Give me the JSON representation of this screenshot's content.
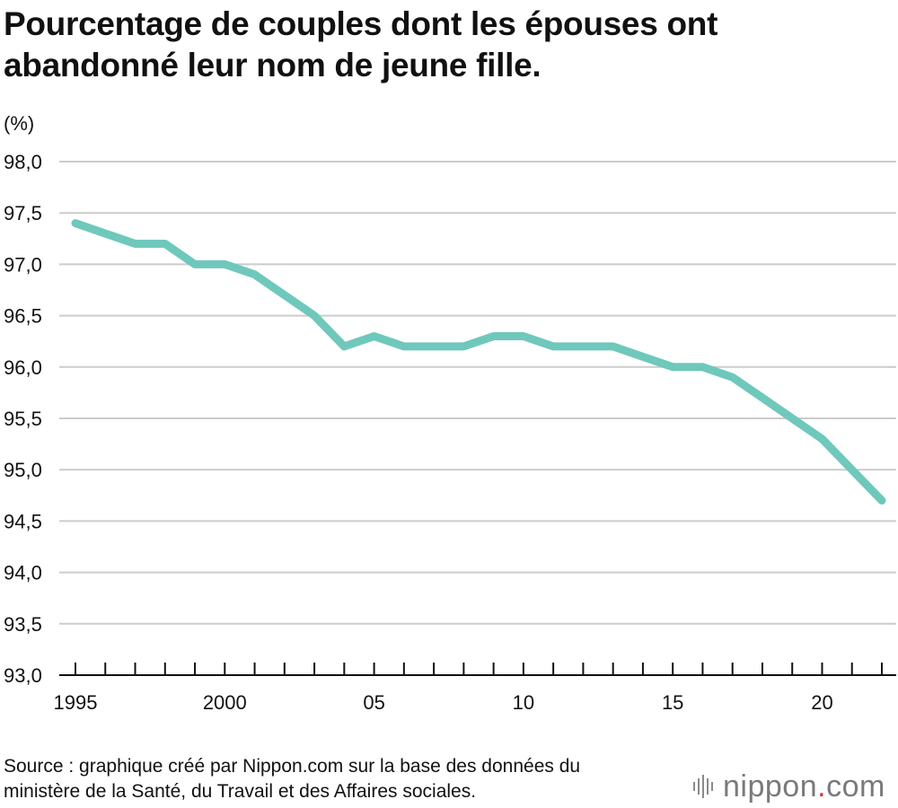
{
  "title_lines": [
    "Pourcentage de couples dont les épouses ont",
    "abandonné leur nom de jeune fille."
  ],
  "chart_data": {
    "type": "line",
    "unit_label": "(%)",
    "x": [
      1995,
      1996,
      1997,
      1998,
      1999,
      2000,
      2001,
      2002,
      2003,
      2004,
      2005,
      2006,
      2007,
      2008,
      2009,
      2010,
      2011,
      2012,
      2013,
      2014,
      2015,
      2016,
      2017,
      2018,
      2019,
      2020,
      2021,
      2022
    ],
    "series": [
      {
        "values": [
          97.4,
          97.3,
          97.2,
          97.2,
          97.0,
          97.0,
          96.9,
          96.7,
          96.5,
          96.2,
          96.3,
          96.2,
          96.2,
          96.2,
          96.3,
          96.3,
          96.2,
          96.2,
          96.2,
          96.1,
          96.0,
          96.0,
          95.9,
          95.7,
          95.5,
          95.3,
          95.0,
          94.7
        ],
        "color": "#6fc8bc"
      }
    ],
    "ylim": [
      93.0,
      98.0
    ],
    "y_ticks": [
      93.0,
      93.5,
      94.0,
      94.5,
      95.0,
      95.5,
      96.0,
      96.5,
      97.0,
      97.5,
      98.0
    ],
    "y_tick_labels": [
      "93,0",
      "93,5",
      "94,0",
      "94,5",
      "95,0",
      "95,5",
      "96,0",
      "96,5",
      "97,0",
      "97,5",
      "98,0"
    ],
    "x_tick_values": [
      1995,
      2000,
      2005,
      2010,
      2015,
      2020
    ],
    "x_tick_labels": [
      "1995",
      "2000",
      "05",
      "10",
      "15",
      "20"
    ],
    "grid": true,
    "line_color": "#6fc8bc",
    "grid_color": "#cccccc"
  },
  "source_lines": [
    "Source : graphique créé par Nippon.com sur la base des données du",
    "ministère de la Santé, du Travail et des Affaires sociales."
  ],
  "brand": {
    "name": "nippon",
    "dot": ".",
    "suffix": "com"
  }
}
